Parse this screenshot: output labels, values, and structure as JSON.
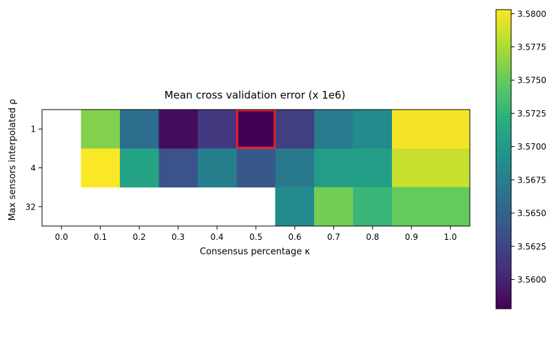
{
  "chart_data": {
    "type": "heatmap",
    "title": "Mean cross validation error (x 1e6)",
    "xlabel": "Consensus percentage κ",
    "ylabel": "Max sensors interpolated ρ",
    "x_ticks": [
      "0.0",
      "0.1",
      "0.2",
      "0.3",
      "0.4",
      "0.5",
      "0.6",
      "0.7",
      "0.8",
      "0.9",
      "1.0"
    ],
    "x_range": [
      -0.05,
      1.05
    ],
    "y_ticks": [
      "1",
      "4",
      "32"
    ],
    "cells": [
      {
        "x": 0.1,
        "w": 0.1,
        "row": 0,
        "value": 3.576
      },
      {
        "x": 0.2,
        "w": 0.1,
        "row": 0,
        "value": 3.566
      },
      {
        "x": 0.3,
        "w": 0.1,
        "row": 0,
        "value": 3.5585
      },
      {
        "x": 0.4,
        "w": 0.1,
        "row": 0,
        "value": 3.5615
      },
      {
        "x": 0.5,
        "w": 0.1,
        "row": 0,
        "value": 3.5578
      },
      {
        "x": 0.6,
        "w": 0.1,
        "row": 0,
        "value": 3.562
      },
      {
        "x": 0.7,
        "w": 0.1,
        "row": 0,
        "value": 3.5672
      },
      {
        "x": 0.8,
        "w": 0.1,
        "row": 0,
        "value": 3.5685
      },
      {
        "x": 0.95,
        "w": 0.2,
        "row": 0,
        "value": 3.58
      },
      {
        "x": 0.1,
        "w": 0.1,
        "row": 1,
        "value": 3.5802
      },
      {
        "x": 0.2,
        "w": 0.1,
        "row": 1,
        "value": 3.571
      },
      {
        "x": 0.3,
        "w": 0.1,
        "row": 1,
        "value": 3.5635
      },
      {
        "x": 0.4,
        "w": 0.1,
        "row": 1,
        "value": 3.5675
      },
      {
        "x": 0.5,
        "w": 0.1,
        "row": 1,
        "value": 3.564
      },
      {
        "x": 0.6,
        "w": 0.1,
        "row": 1,
        "value": 3.567
      },
      {
        "x": 0.7,
        "w": 0.1,
        "row": 1,
        "value": 3.5702
      },
      {
        "x": 0.8,
        "w": 0.1,
        "row": 1,
        "value": 3.5705
      },
      {
        "x": 0.95,
        "w": 0.2,
        "row": 1,
        "value": 3.5785
      },
      {
        "x": 0.6,
        "w": 0.1,
        "row": 2,
        "value": 3.5685
      },
      {
        "x": 0.7,
        "w": 0.1,
        "row": 2,
        "value": 3.5755
      },
      {
        "x": 0.8,
        "w": 0.1,
        "row": 2,
        "value": 3.5728
      },
      {
        "x": 0.95,
        "w": 0.2,
        "row": 2,
        "value": 3.575
      }
    ],
    "highlight": {
      "x": 0.5,
      "w": 0.1,
      "row": 0,
      "color": "#e8202a"
    },
    "colorbar": {
      "colormap": "viridis",
      "range": [
        3.5578,
        3.5803
      ],
      "ticks": [
        "3.5600",
        "3.5625",
        "3.5650",
        "3.5675",
        "3.5700",
        "3.5725",
        "3.5750",
        "3.5775",
        "3.5800"
      ]
    }
  }
}
